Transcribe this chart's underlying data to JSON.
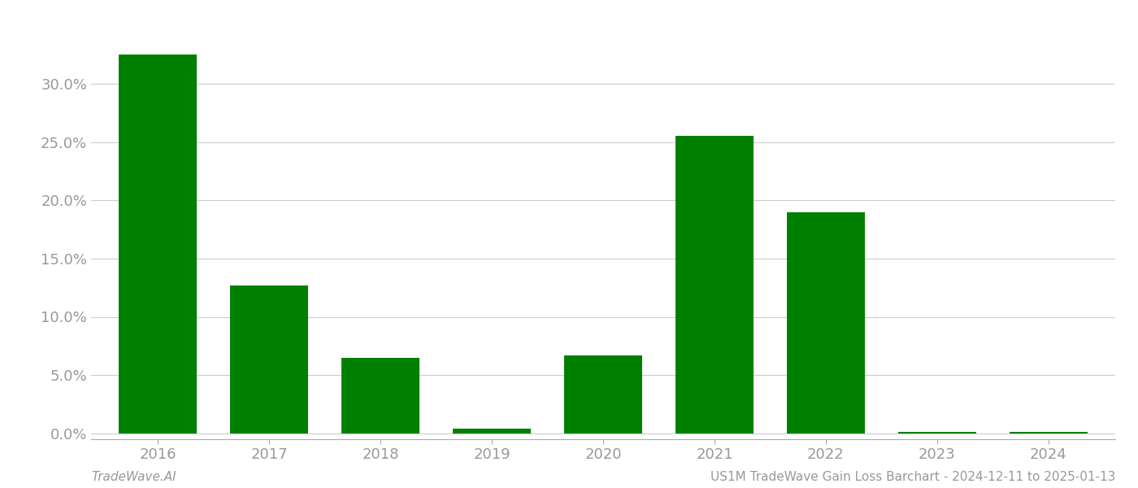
{
  "years": [
    "2016",
    "2017",
    "2018",
    "2019",
    "2020",
    "2021",
    "2022",
    "2023",
    "2024"
  ],
  "values": [
    0.325,
    0.127,
    0.065,
    0.004,
    0.067,
    0.255,
    0.19,
    0.001,
    0.001
  ],
  "bar_color_positive": "#008000",
  "bar_color_negative": "#ff0000",
  "background_color": "#ffffff",
  "grid_color": "#cccccc",
  "title_text": "US1M TradeWave Gain Loss Barchart - 2024-12-11 to 2025-01-13",
  "footer_left": "TradeWave.AI",
  "footer_right": "US1M TradeWave Gain Loss Barchart - 2024-12-11 to 2025-01-13",
  "ylim_min": -0.005,
  "ylim_max": 0.355,
  "ytick_values": [
    0.0,
    0.05,
    0.1,
    0.15,
    0.2,
    0.25,
    0.3
  ],
  "tick_label_color": "#999999",
  "axis_line_color": "#aaaaaa",
  "font_size_ticks": 13,
  "font_size_footer": 11,
  "bar_width": 0.7
}
